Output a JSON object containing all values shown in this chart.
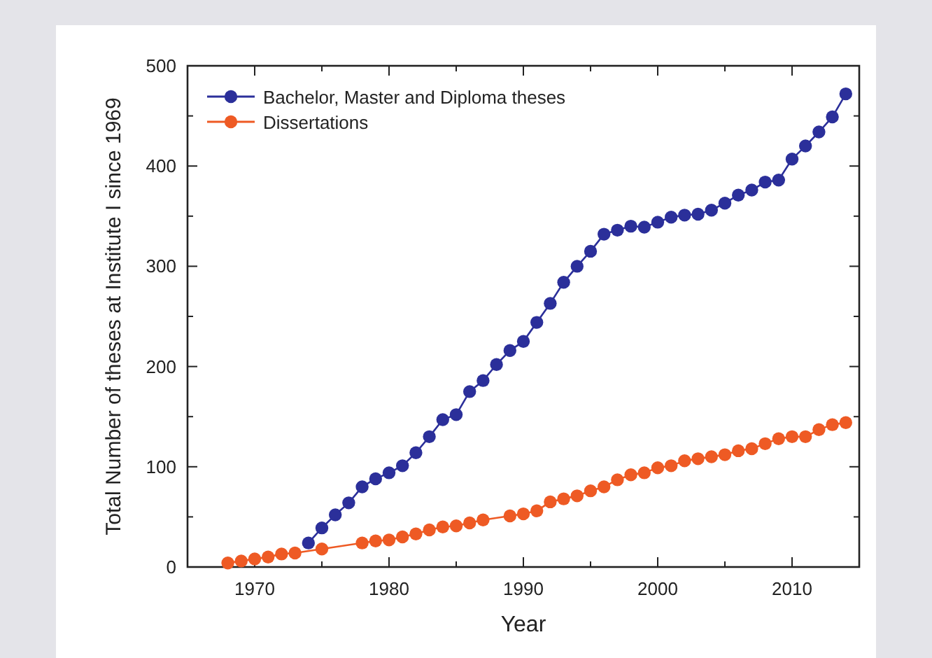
{
  "chart_data": {
    "type": "line",
    "xlabel": "Year",
    "ylabel": "Total Number of theses at Institute I since 1969",
    "xlim": [
      1965,
      2015
    ],
    "ylim": [
      0,
      500
    ],
    "xticks": [
      {
        "value": 1965,
        "label": null
      },
      1970,
      {
        "value": 1975,
        "label": null
      },
      1980,
      {
        "value": 1985,
        "label": null
      },
      1990,
      {
        "value": 1995,
        "label": null
      },
      2000,
      {
        "value": 2005,
        "label": null
      },
      2010,
      {
        "value": 2015,
        "label": null
      }
    ],
    "yticks": [
      0,
      {
        "value": 50,
        "label": null
      },
      100,
      {
        "value": 150,
        "label": null
      },
      200,
      {
        "value": 250,
        "label": null
      },
      300,
      {
        "value": 350,
        "label": null
      },
      400,
      {
        "value": 450,
        "label": null
      },
      500
    ],
    "grid": false,
    "legend": "top left",
    "marker": "circle",
    "line_style": "solid",
    "series": [
      {
        "name": "Bachelor, Master and Diploma theses",
        "color": "#2b2f9a",
        "x": [
          1974,
          1975,
          1976,
          1977,
          1978,
          1979,
          1980,
          1981,
          1982,
          1983,
          1984,
          1985,
          1986,
          1987,
          1988,
          1989,
          1990,
          1991,
          1992,
          1993,
          1994,
          1995,
          1996,
          1997,
          1998,
          1999,
          2000,
          2001,
          2002,
          2003,
          2004,
          2005,
          2006,
          2007,
          2008,
          2009,
          2010,
          2011,
          2012,
          2013,
          2014
        ],
        "values": [
          24,
          39,
          52,
          64,
          80,
          88,
          94,
          101,
          114,
          130,
          147,
          152,
          175,
          186,
          202,
          216,
          225,
          244,
          263,
          284,
          300,
          315,
          332,
          336,
          340,
          339,
          344,
          349,
          351,
          352,
          356,
          363,
          371,
          376,
          384,
          386,
          407,
          420,
          434,
          449,
          472
        ]
      },
      {
        "name": "Dissertations",
        "color": "#ee5a24",
        "x": [
          1968,
          1969,
          1970,
          1971,
          1972,
          1973,
          1975,
          1978,
          1979,
          1980,
          1981,
          1982,
          1983,
          1984,
          1985,
          1986,
          1987,
          1989,
          1990,
          1991,
          1992,
          1993,
          1994,
          1995,
          1996,
          1997,
          1998,
          1999,
          2000,
          2001,
          2002,
          2003,
          2004,
          2005,
          2006,
          2007,
          2008,
          2009,
          2010,
          2011,
          2012,
          2013,
          2014
        ],
        "values": [
          4,
          6,
          8,
          10,
          13,
          14,
          18,
          24,
          26,
          27,
          30,
          33,
          37,
          40,
          41,
          44,
          47,
          51,
          53,
          56,
          65,
          68,
          71,
          76,
          80,
          87,
          92,
          94,
          99,
          101,
          106,
          108,
          110,
          112,
          116,
          118,
          123,
          128,
          130,
          130,
          137,
          142,
          144
        ]
      }
    ]
  }
}
